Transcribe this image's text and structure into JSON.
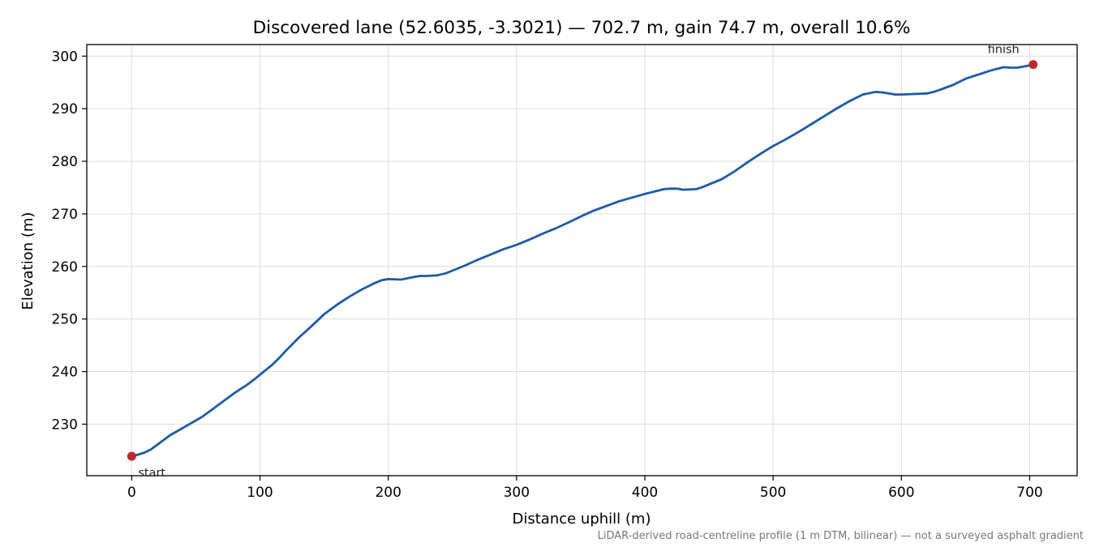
{
  "chart_data": {
    "type": "line",
    "title": "Discovered lane (52.6035, -3.3021) — 702.7 m, gain 74.7 m, overall 10.6%",
    "xlabel": "Distance uphill (m)",
    "ylabel": "Elevation (m)",
    "xlim": [
      -35,
      737
    ],
    "ylim": [
      220.2,
      302.2
    ],
    "xticks": [
      0,
      100,
      200,
      300,
      400,
      500,
      600,
      700
    ],
    "yticks": [
      230,
      240,
      250,
      260,
      270,
      280,
      290,
      300
    ],
    "grid": true,
    "line_color": "#1f5aa6",
    "marker_color": "#c1272d",
    "series": [
      {
        "x": [
          0,
          5,
          10,
          15,
          20,
          25,
          30,
          35,
          40,
          45,
          50,
          55,
          60,
          70,
          80,
          90,
          95,
          100,
          110,
          115,
          120,
          130,
          140,
          150,
          160,
          170,
          180,
          190,
          195,
          200,
          210,
          220,
          225,
          230,
          238,
          245,
          250,
          260,
          270,
          280,
          290,
          300,
          310,
          320,
          330,
          340,
          350,
          360,
          370,
          380,
          390,
          400,
          410,
          415,
          420,
          425,
          430,
          440,
          445,
          450,
          460,
          470,
          480,
          490,
          500,
          510,
          520,
          530,
          540,
          550,
          560,
          570,
          580,
          585,
          590,
          595,
          600,
          610,
          620,
          625,
          630,
          640,
          650,
          655,
          660,
          670,
          680,
          685,
          690,
          695,
          702.7
        ],
        "y": [
          223.9,
          224.2,
          224.6,
          225.2,
          226.1,
          227,
          227.9,
          228.6,
          229.3,
          230,
          230.7,
          231.4,
          232.3,
          234.1,
          235.9,
          237.5,
          238.4,
          239.4,
          241.4,
          242.6,
          243.9,
          246.4,
          248.6,
          250.9,
          252.7,
          254.3,
          255.7,
          256.9,
          257.4,
          257.6,
          257.5,
          258,
          258.2,
          258.2,
          258.3,
          258.7,
          259.2,
          260.2,
          261.3,
          262.3,
          263.3,
          264.1,
          265.1,
          266.2,
          267.2,
          268.3,
          269.5,
          270.6,
          271.5,
          272.4,
          273.1,
          273.8,
          274.4,
          274.7,
          274.8,
          274.8,
          274.6,
          274.7,
          275.1,
          275.6,
          276.6,
          278.1,
          279.8,
          281.4,
          282.9,
          284.2,
          285.6,
          287.1,
          288.6,
          290.1,
          291.5,
          292.7,
          293.2,
          293.1,
          292.9,
          292.7,
          292.7,
          292.8,
          292.9,
          293.2,
          293.6,
          294.5,
          295.7,
          296.1,
          296.5,
          297.3,
          297.9,
          297.8,
          297.8,
          298,
          298.4
        ]
      }
    ],
    "annotations": [
      {
        "label": "start",
        "x": 0,
        "y": 223.9
      },
      {
        "label": "finish",
        "x": 702.7,
        "y": 298.4
      }
    ],
    "footnote": "LiDAR-derived road-centreline profile (1 m DTM, bilinear) — not a surveyed asphalt gradient"
  }
}
